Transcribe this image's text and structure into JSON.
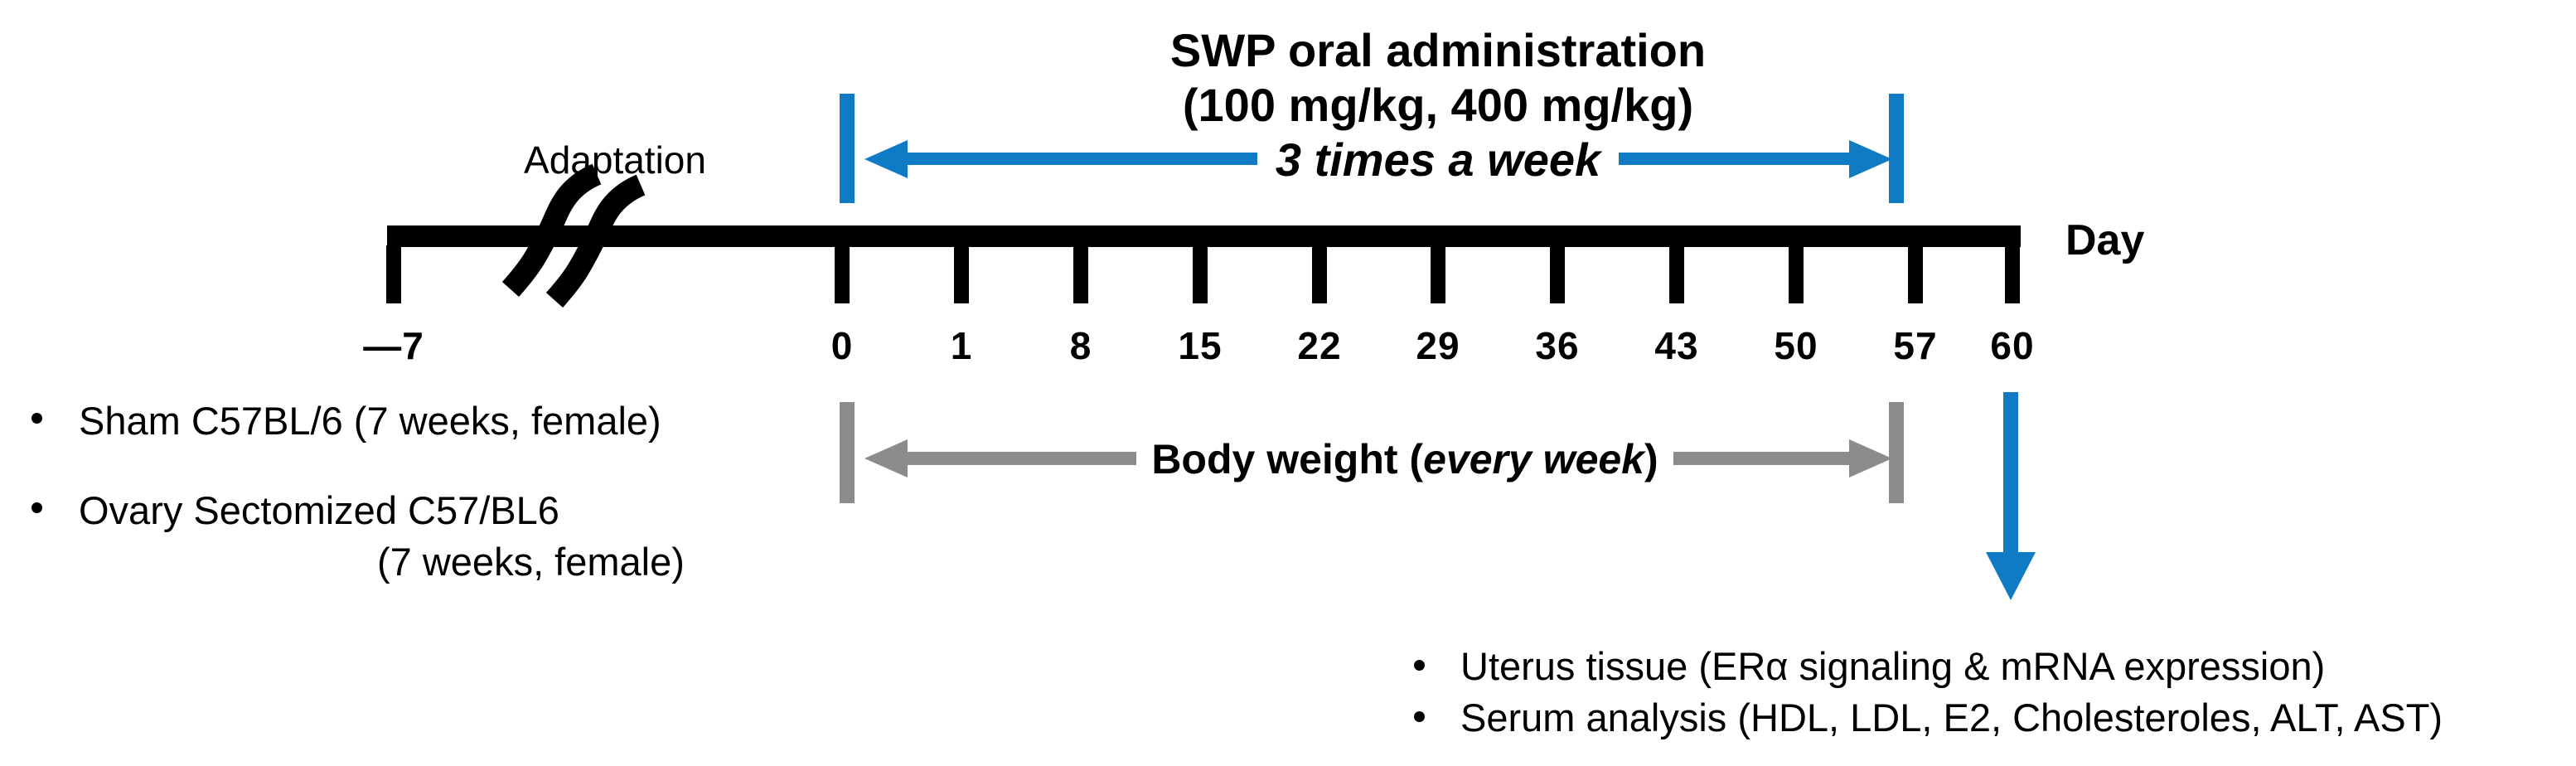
{
  "title": {
    "line1": "SWP oral administration",
    "line2": "(100 mg/kg, 400 mg/kg)",
    "line3": "3 times a week"
  },
  "adaptation_label": "Adaptation",
  "timeline": {
    "axis_label": "Day",
    "tick_labels": [
      "—7",
      "0",
      "1",
      "8",
      "15",
      "22",
      "29",
      "36",
      "43",
      "50",
      "57",
      "60"
    ]
  },
  "body_weight": {
    "prefix": "Body weight (",
    "emphasis": "every week",
    "suffix": ")"
  },
  "groups": [
    {
      "line1": "Sham C57BL/6 (7 weeks, female)",
      "line2": ""
    },
    {
      "line1": "Ovary Sectomized C57/BL6",
      "line2": "(7 weeks, female)"
    }
  ],
  "endpoints": [
    "Uterus tissue (ERα signaling & mRNA expression)",
    "Serum analysis (HDL, LDL, E2, Cholesteroles, ALT, AST)"
  ],
  "colors": {
    "accent_blue": "#0f7bc5",
    "arrow_gray": "#8c8c8c",
    "ink": "#000000"
  }
}
